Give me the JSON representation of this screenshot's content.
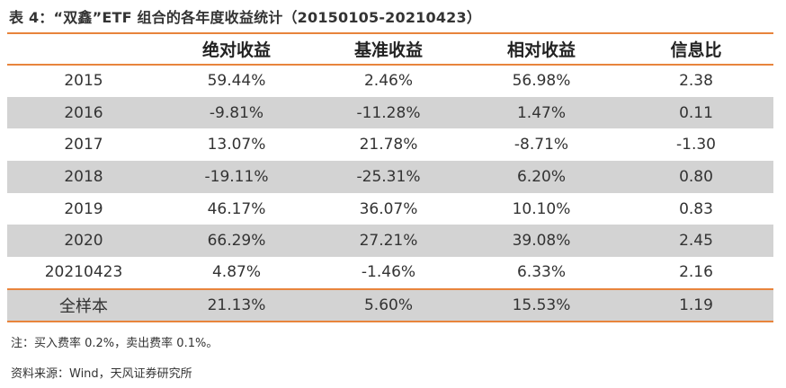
{
  "title": "表 4：“双鑫”ETF 组合的各年度收益统计（20150105-20210423）",
  "table": {
    "headers": [
      "",
      "绝对收益",
      "基准收益",
      "相对收益",
      "信息比"
    ],
    "rows": [
      [
        "2015",
        "59.44%",
        "2.46%",
        "56.98%",
        "2.38"
      ],
      [
        "2016",
        "-9.81%",
        "-11.28%",
        "1.47%",
        "0.11"
      ],
      [
        "2017",
        "13.07%",
        "21.78%",
        "-8.71%",
        "-1.30"
      ],
      [
        "2018",
        "-19.11%",
        "-25.31%",
        "6.20%",
        "0.80"
      ],
      [
        "2019",
        "46.17%",
        "36.07%",
        "10.10%",
        "0.83"
      ],
      [
        "2020",
        "66.29%",
        "27.21%",
        "39.08%",
        "2.45"
      ],
      [
        "20210423",
        "4.87%",
        "-1.46%",
        "6.33%",
        "2.16"
      ],
      [
        "全样本",
        "21.13%",
        "5.60%",
        "15.53%",
        "1.19"
      ]
    ]
  },
  "notes": {
    "fee": "注：买入费率 0.2%，卖出费率 0.1%。",
    "source": "资料来源：Wind，天风证券研究所"
  },
  "colors": {
    "accent_rule": "#e8843c",
    "row_shade": "#d3d3d3"
  }
}
